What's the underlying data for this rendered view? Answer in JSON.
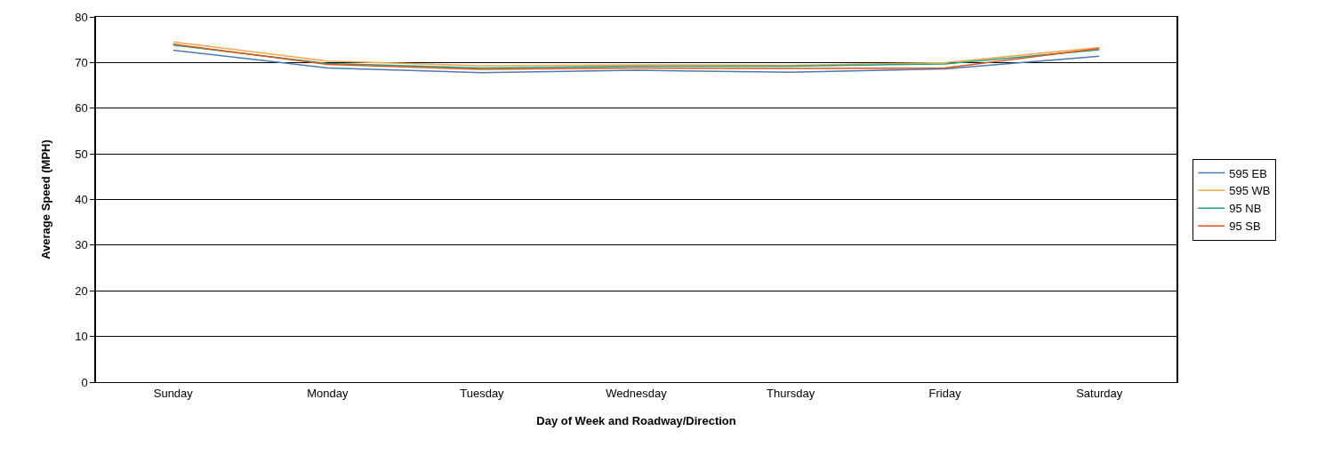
{
  "chart_data": {
    "type": "line",
    "xlabel": "Day of Week and Roadway/Direction",
    "ylabel": "Average Speed (MPH)",
    "categories": [
      "Sunday",
      "Monday",
      "Tuesday",
      "Wednesday",
      "Thursday",
      "Friday",
      "Saturday"
    ],
    "series": [
      {
        "name": "595 EB",
        "color": "#4a7ab0",
        "values": [
          72.7,
          68.8,
          67.8,
          68.3,
          67.9,
          68.6,
          71.4
        ]
      },
      {
        "name": "595 WB",
        "color": "#f5a64a",
        "values": [
          74.5,
          70.3,
          69.3,
          69.5,
          69.4,
          70.0,
          73.3
        ]
      },
      {
        "name": "95 NB",
        "color": "#1fa37e",
        "values": [
          73.8,
          69.8,
          68.8,
          69.2,
          69.2,
          69.7,
          72.8
        ]
      },
      {
        "name": "95 SB",
        "color": "#e0531c",
        "values": [
          74.0,
          69.6,
          68.5,
          68.8,
          68.7,
          68.8,
          73.1
        ]
      }
    ],
    "ylim": [
      0,
      80
    ],
    "yticks": [
      0,
      10,
      20,
      30,
      40,
      50,
      60,
      70,
      80
    ],
    "grid": "y",
    "legend": "right",
    "marker": "none",
    "line_style": "solid"
  }
}
